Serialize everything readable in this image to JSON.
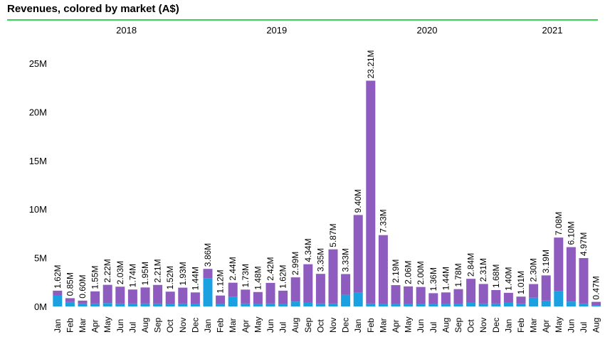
{
  "page": {
    "title": "Revenues, colored by market (A$)"
  },
  "colors": {
    "primary_market": "#1ba1e2",
    "other_markets": "#8e5cbf",
    "title_rule": "#39d353"
  },
  "chart_data": {
    "type": "bar",
    "stacked": true,
    "title": "Revenues, colored by market (A$)",
    "xlabel": "",
    "ylabel": "",
    "ylim": [
      0,
      25000000
    ],
    "yticks": [
      {
        "value": 0,
        "label": "0M"
      },
      {
        "value": 5000000,
        "label": "5M"
      },
      {
        "value": 10000000,
        "label": "10M"
      },
      {
        "value": 15000000,
        "label": "15M"
      },
      {
        "value": 20000000,
        "label": "20M"
      },
      {
        "value": 25000000,
        "label": "25M"
      }
    ],
    "years": [
      {
        "label": "2018",
        "start": 0,
        "end": 11
      },
      {
        "label": "2019",
        "start": 12,
        "end": 23
      },
      {
        "label": "2020",
        "start": 24,
        "end": 35
      },
      {
        "label": "2021",
        "start": 36,
        "end": 43
      }
    ],
    "categories": [
      "Jan",
      "Feb",
      "Mar",
      "Apr",
      "May",
      "Jun",
      "Jul",
      "Aug",
      "Sep",
      "Oct",
      "Nov",
      "Dec",
      "Jan",
      "Feb",
      "Mar",
      "Apr",
      "May",
      "Jun",
      "Jul",
      "Aug",
      "Sep",
      "Oct",
      "Nov",
      "Dec",
      "Jan",
      "Feb",
      "Mar",
      "Apr",
      "May",
      "Jun",
      "Jul",
      "Aug",
      "Sep",
      "Oct",
      "Nov",
      "Dec",
      "Jan",
      "Feb",
      "Mar",
      "Apr",
      "May",
      "Jun",
      "Jul",
      "Aug"
    ],
    "totals": [
      1620000,
      850000,
      600000,
      1550000,
      2220000,
      2030000,
      1740000,
      1950000,
      2210000,
      1520000,
      1930000,
      1440000,
      3860000,
      1120000,
      2440000,
      1730000,
      1480000,
      2420000,
      1620000,
      2990000,
      4340000,
      3350000,
      5870000,
      3330000,
      9400000,
      23210000,
      7330000,
      2190000,
      2060000,
      2000000,
      1360000,
      1440000,
      1780000,
      2840000,
      2310000,
      1680000,
      1400000,
      1010000,
      2300000,
      3190000,
      7080000,
      6100000,
      4970000,
      470000
    ],
    "total_labels": [
      "1.62M",
      "0.85M",
      "0.60M",
      "1.55M",
      "2.22M",
      "2.03M",
      "1.74M",
      "1.95M",
      "2.21M",
      "1.52M",
      "1.93M",
      "1.44M",
      "3.86M",
      "1.12M",
      "2.44M",
      "1.73M",
      "1.48M",
      "2.42M",
      "1.62M",
      "2.99M",
      "4.34M",
      "3.35M",
      "5.87M",
      "3.33M",
      "9.40M",
      "23.21M",
      "7.33M",
      "2.19M",
      "2.06M",
      "2.00M",
      "1.36M",
      "1.44M",
      "1.78M",
      "2.84M",
      "2.31M",
      "1.68M",
      "1.40M",
      "1.01M",
      "2.30M",
      "3.19M",
      "7.08M",
      "6.10M",
      "4.97M",
      "0.47M"
    ],
    "series": [
      {
        "values": [
          1100000,
          450000,
          300000,
          300000,
          350000,
          300000,
          300000,
          300000,
          300000,
          250000,
          300000,
          250000,
          2900000,
          250000,
          1000000,
          300000,
          250000,
          300000,
          250000,
          500000,
          400000,
          300000,
          300000,
          1200000,
          1400000,
          300000,
          250000,
          250000,
          250000,
          250000,
          250000,
          250000,
          250000,
          400000,
          300000,
          300000,
          400000,
          300000,
          900000,
          600000,
          1600000,
          500000,
          300000,
          100000
        ]
      },
      {
        "values": [
          520000,
          400000,
          300000,
          1250000,
          1870000,
          1730000,
          1440000,
          1650000,
          1910000,
          1270000,
          1630000,
          1190000,
          960000,
          870000,
          1440000,
          1430000,
          1230000,
          2120000,
          1370000,
          2490000,
          3940000,
          3050000,
          5570000,
          2130000,
          8000000,
          22910000,
          7080000,
          1940000,
          1810000,
          1750000,
          1110000,
          1190000,
          1530000,
          2440000,
          2010000,
          1380000,
          1000000,
          710000,
          1400000,
          2590000,
          5480000,
          5600000,
          4670000,
          370000
        ]
      }
    ]
  }
}
